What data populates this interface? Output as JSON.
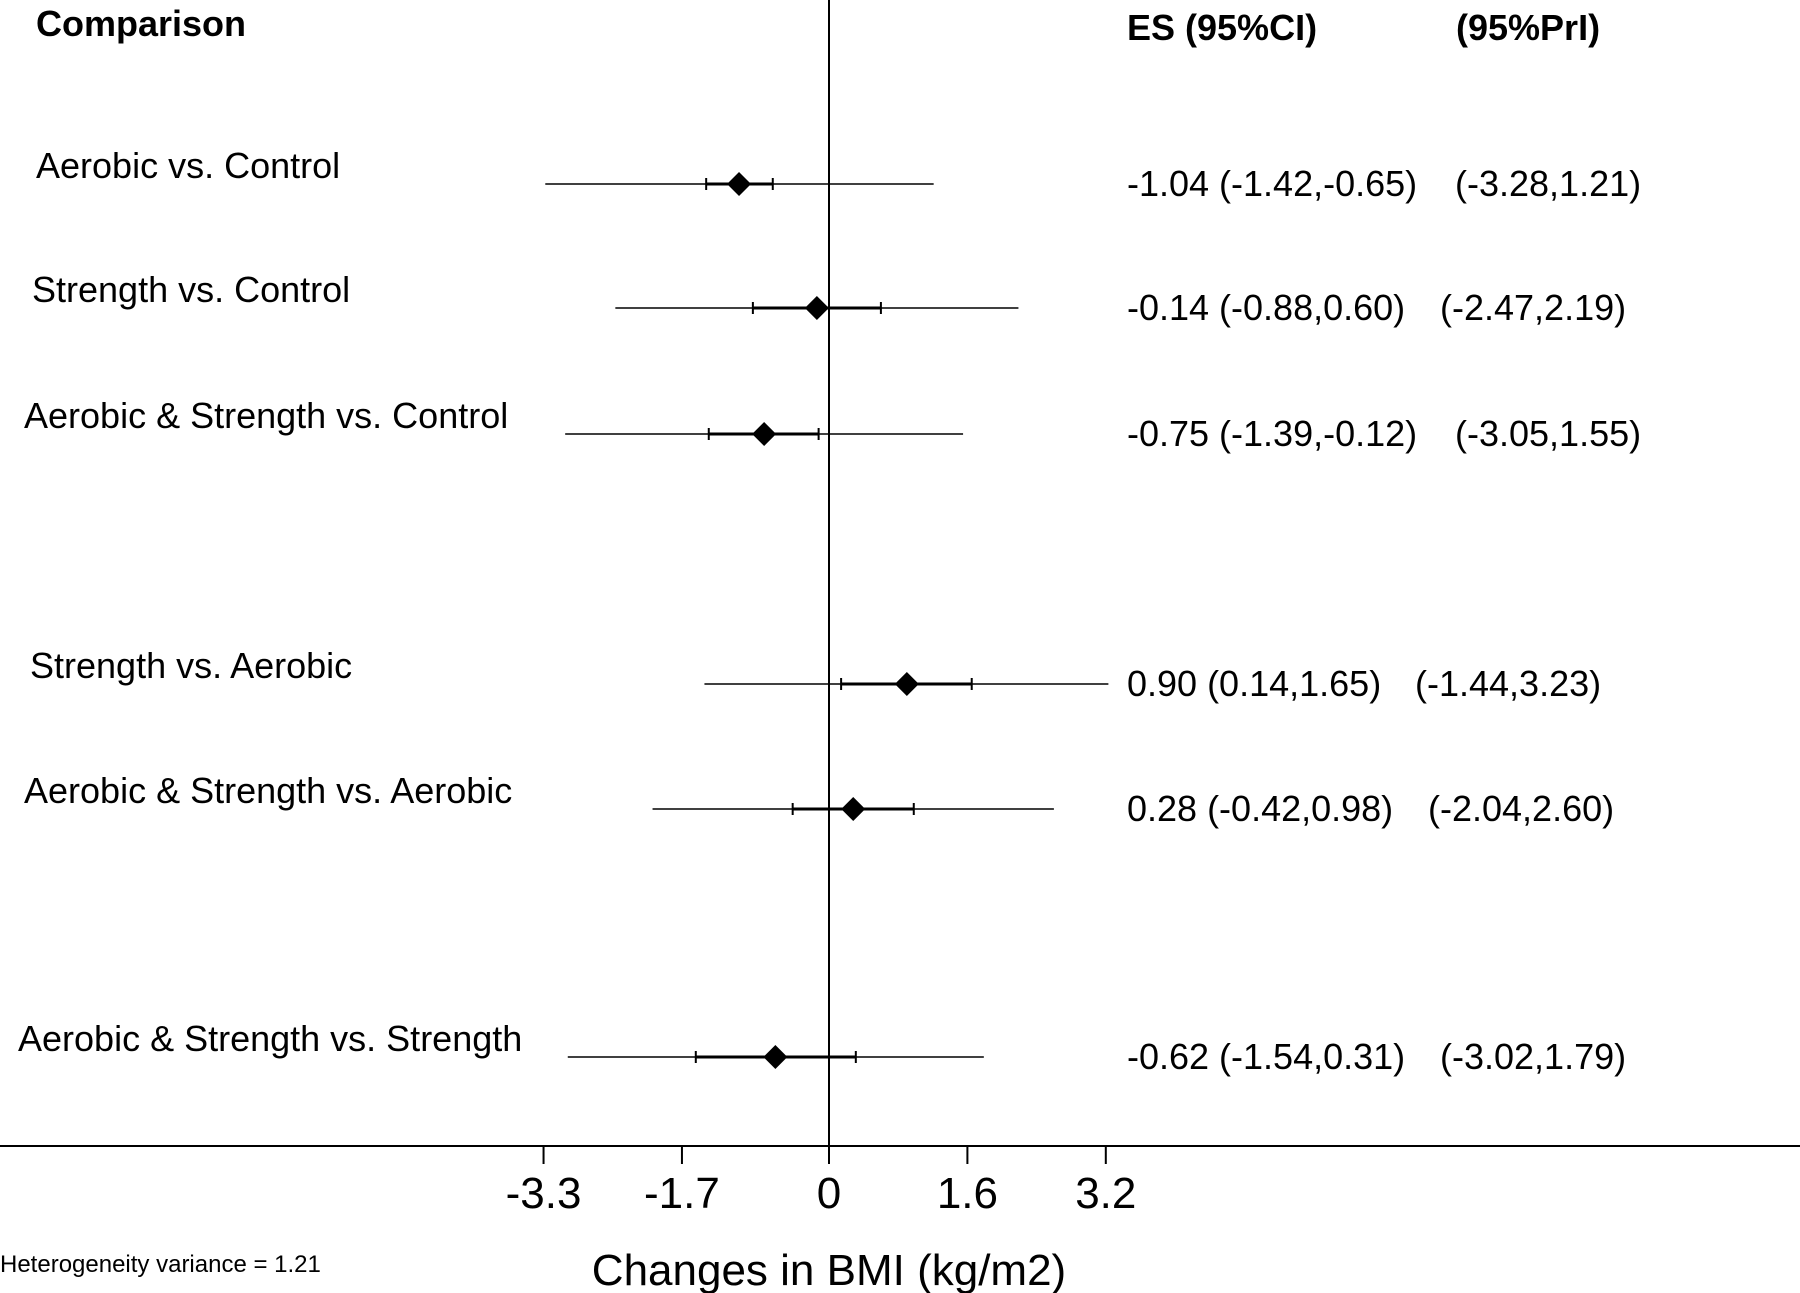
{
  "chart_data": {
    "type": "forest",
    "headers": {
      "comparison": "Comparison",
      "es_ci": "ES (95%CI)",
      "pri": "(95%PrI)"
    },
    "xlabel": "Changes in BMI (kg/m2)",
    "xlim": [
      -3.3,
      3.2
    ],
    "xticks": [
      -3.3,
      -1.7,
      0,
      1.6,
      3.2
    ],
    "xtick_labels": [
      "-3.3",
      "-1.7",
      "0",
      "1.6",
      "3.2"
    ],
    "reference_line": 0,
    "rows": [
      {
        "label": "Aerobic vs. Control",
        "es": -1.04,
        "ci": [
          -1.42,
          -0.65
        ],
        "pri": [
          -3.28,
          1.21
        ],
        "es_text": "-1.04 (-1.42,-0.65)",
        "pri_text": "(-3.28,1.21)"
      },
      {
        "label": "Strength vs. Control",
        "es": -0.14,
        "ci": [
          -0.88,
          0.6
        ],
        "pri": [
          -2.47,
          2.19
        ],
        "es_text": "-0.14 (-0.88,0.60)",
        "pri_text": "(-2.47,2.19)"
      },
      {
        "label": "Aerobic & Strength vs. Control",
        "es": -0.75,
        "ci": [
          -1.39,
          -0.12
        ],
        "pri": [
          -3.05,
          1.55
        ],
        "es_text": "-0.75 (-1.39,-0.12)",
        "pri_text": "(-3.05,1.55)"
      },
      {
        "label": "Strength vs. Aerobic",
        "es": 0.9,
        "ci": [
          0.14,
          1.65
        ],
        "pri": [
          -1.44,
          3.23
        ],
        "es_text": "0.90 (0.14,1.65)",
        "pri_text": "(-1.44,3.23)"
      },
      {
        "label": "Aerobic & Strength vs. Aerobic",
        "es": 0.28,
        "ci": [
          -0.42,
          0.98
        ],
        "pri": [
          -2.04,
          2.6
        ],
        "es_text": "0.28 (-0.42,0.98)",
        "pri_text": "(-2.04,2.60)"
      },
      {
        "label": "Aerobic & Strength vs. Strength",
        "es": -0.62,
        "ci": [
          -1.54,
          0.31
        ],
        "pri": [
          -3.02,
          1.79
        ],
        "es_text": "-0.62 (-1.54,0.31)",
        "pri_text": "(-3.02,1.79)"
      }
    ],
    "footnote": "Heterogeneity variance = 1.21"
  }
}
